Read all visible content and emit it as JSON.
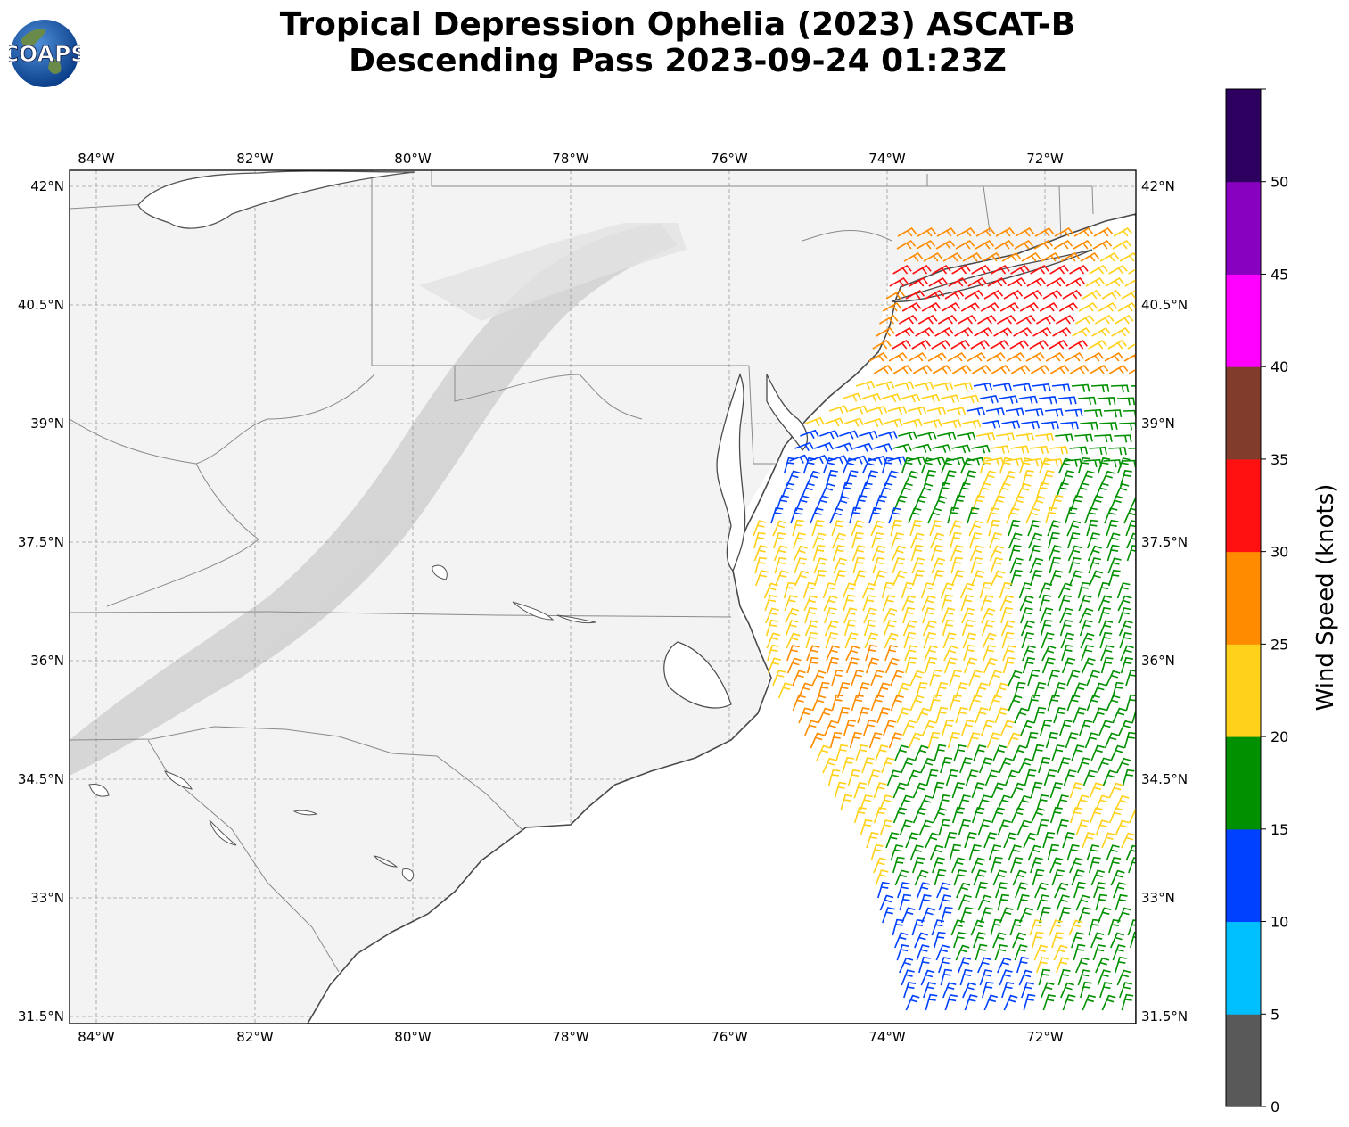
{
  "header": {
    "title_line1": "Tropical Depression Ophelia (2023) ASCAT-B",
    "title_line2": "Descending Pass 2023-09-24 01:23Z",
    "logo_text": "COAPS"
  },
  "map": {
    "region": "U.S. Mid-Atlantic and Southeast coast",
    "basemap": "grayscale topography",
    "grid_lines": true,
    "lon_ticks": [
      "84°W",
      "82°W",
      "80°W",
      "78°W",
      "76°W",
      "74°W",
      "72°W"
    ],
    "lat_ticks": [
      "42°N",
      "40.5°N",
      "39°N",
      "37.5°N",
      "36°N",
      "34.5°N",
      "33°N",
      "31.5°N"
    ]
  },
  "colorbar": {
    "label": "Wind Speed (knots)",
    "ticks": [
      "0",
      "5",
      "10",
      "15",
      "20",
      "25",
      "30",
      "35",
      "40",
      "45",
      "50"
    ],
    "colors": [
      "#595959",
      "#00bfff",
      "#0040ff",
      "#009000",
      "#ffd11a",
      "#ff8c00",
      "#ff1010",
      "#823c2c",
      "#ff00ff",
      "#8800c0",
      "#2d0060"
    ]
  },
  "legend": {
    "icon": "wind-barb-icon"
  }
}
